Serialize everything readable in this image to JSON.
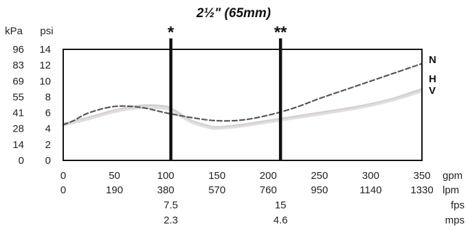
{
  "chart_data": {
    "type": "line",
    "title": "2½\" (65mm)",
    "x_units": [
      "gpm",
      "lpm",
      "fps",
      "mps"
    ],
    "x": [
      0,
      50,
      100,
      150,
      200,
      250,
      300,
      350
    ],
    "x_lpm_labels": [
      "0",
      "190",
      "380",
      "570",
      "760",
      "950",
      "1140",
      "1330"
    ],
    "xlim": [
      0,
      350
    ],
    "y_units": [
      "kPa",
      "psi"
    ],
    "y_psi_ticks": [
      0,
      2,
      4,
      6,
      8,
      10,
      12,
      14
    ],
    "y_kpa_labels": [
      "0",
      "14",
      "28",
      "41",
      "55",
      "69",
      "83",
      "96"
    ],
    "ylim": [
      0,
      14
    ],
    "markers": [
      {
        "label": "*",
        "gpm": 105,
        "fps": "7.5",
        "mps": "2.3"
      },
      {
        "label": "**",
        "gpm": 212,
        "fps": "15",
        "mps": "4.6"
      }
    ],
    "series": [
      {
        "name": "N",
        "style": "dashed",
        "color": "#555555",
        "x": [
          0,
          10,
          25,
          50,
          75,
          100,
          125,
          150,
          175,
          200,
          225,
          250,
          275,
          300,
          325,
          350
        ],
        "values": [
          4.5,
          5.0,
          6.0,
          6.8,
          6.7,
          6.0,
          5.4,
          5.0,
          5.1,
          5.7,
          6.6,
          7.8,
          8.9,
          10.0,
          11.1,
          12.2
        ]
      },
      {
        "name": "H",
        "style": "solid",
        "color": "#d4d0d0",
        "x": [
          0,
          25,
          50,
          75,
          100,
          110,
          125,
          140,
          150,
          175,
          200,
          225,
          250,
          275,
          300,
          325,
          350
        ],
        "values": [
          4.6,
          5.4,
          6.3,
          6.9,
          6.8,
          6.2,
          5.0,
          4.4,
          4.2,
          4.5,
          5.0,
          5.5,
          6.0,
          6.5,
          7.1,
          7.9,
          9.0
        ]
      },
      {
        "name": "V",
        "style": "solid",
        "color": "#e2dedd",
        "x": [
          0,
          25,
          50,
          75,
          100,
          110,
          125,
          140,
          150,
          175,
          200,
          225,
          250,
          275,
          300,
          325,
          350
        ],
        "values": [
          4.4,
          5.2,
          6.1,
          6.6,
          6.5,
          5.9,
          4.8,
          4.2,
          4.0,
          4.3,
          4.8,
          5.3,
          5.8,
          6.3,
          6.9,
          7.7,
          8.7
        ]
      }
    ]
  }
}
